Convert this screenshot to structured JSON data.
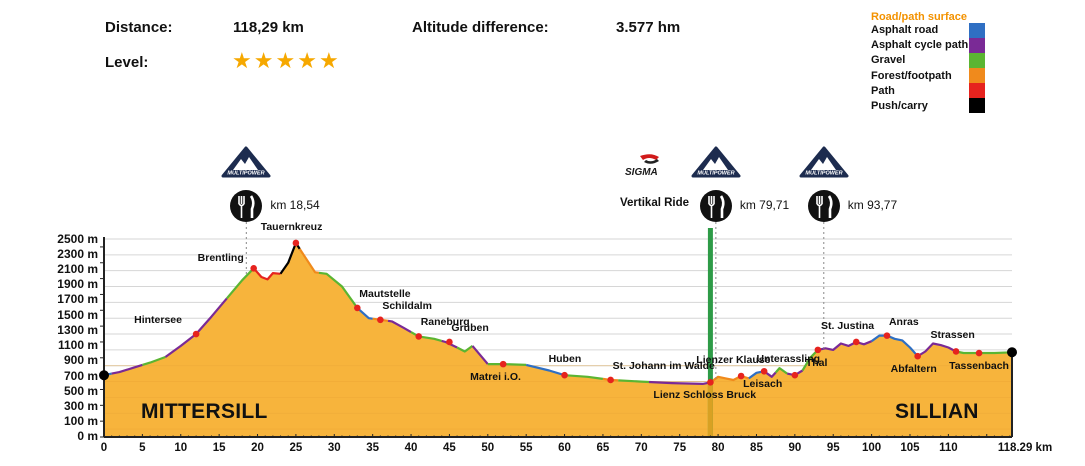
{
  "header": {
    "distance_label": "Distance:",
    "distance_value": "118,29 km",
    "altitude_label": "Altitude difference:",
    "altitude_value": "3.577 hm",
    "level_label": "Level:",
    "level_stars": 5,
    "star_color": "#f6a800"
  },
  "legend": {
    "title": "Road/path surface",
    "title_color": "#f39200",
    "items": [
      {
        "label": "Asphalt road",
        "color": "#2f6fc3"
      },
      {
        "label": "Asphalt cycle path",
        "color": "#7a2a96"
      },
      {
        "label": "Gravel",
        "color": "#5bb532"
      },
      {
        "label": "Forest/footpath",
        "color": "#f08a1c"
      },
      {
        "label": "Path",
        "color": "#e6231e"
      },
      {
        "label": "Push/carry",
        "color": "#000000"
      }
    ]
  },
  "sponsors": {
    "multipower_label": "MULTIPOWER",
    "sigma_label": "SIGMA",
    "vertikal_ride_label": "Vertikal Ride"
  },
  "feed_stations": [
    {
      "km_label": "km 18,54",
      "km": 18.54
    },
    {
      "km_label": "km 79,71",
      "km": 79.71
    },
    {
      "km_label": "km 93,77",
      "km": 93.77
    }
  ],
  "chart_data": {
    "type": "area",
    "title": "Elevation profile",
    "xlabel": "km",
    "ylabel": "m",
    "xlim": [
      0,
      118.29
    ],
    "ylim": [
      0,
      2500
    ],
    "grid": true,
    "fill_color": "#f7b43c",
    "x_ticks": [
      "0",
      "5",
      "10",
      "15",
      "20",
      "25",
      "30",
      "35",
      "40",
      "45",
      "50",
      "55",
      "60",
      "65",
      "70",
      "75",
      "80",
      "85",
      "90",
      "95",
      "100",
      "105",
      "110",
      "118.29 km"
    ],
    "y_ticks": [
      "2500 m",
      "2300 m",
      "2100 m",
      "1900 m",
      "1700 m",
      "1500 m",
      "1300 m",
      "1100 m",
      "900 m",
      "700 m",
      "500 m",
      "300 m",
      "100 m",
      "0 m"
    ],
    "start_label": "MITTERSILL",
    "end_label": "SILLIAN",
    "vertikal_ride_km": 79,
    "profile": [
      [
        0,
        780
      ],
      [
        2,
        820
      ],
      [
        4,
        880
      ],
      [
        6,
        940
      ],
      [
        8,
        1010
      ],
      [
        10,
        1150
      ],
      [
        12,
        1300
      ],
      [
        14,
        1520
      ],
      [
        16,
        1750
      ],
      [
        18,
        1980
      ],
      [
        19.5,
        2130
      ],
      [
        20.5,
        2020
      ],
      [
        21.3,
        1990
      ],
      [
        22,
        2070
      ],
      [
        23,
        2060
      ],
      [
        24,
        2200
      ],
      [
        25,
        2450
      ],
      [
        26,
        2300
      ],
      [
        27.5,
        2080
      ],
      [
        29,
        2060
      ],
      [
        31,
        1900
      ],
      [
        33,
        1630
      ],
      [
        34.5,
        1500
      ],
      [
        36,
        1480
      ],
      [
        37.5,
        1460
      ],
      [
        39,
        1380
      ],
      [
        41,
        1270
      ],
      [
        43,
        1240
      ],
      [
        44.5,
        1200
      ],
      [
        46,
        1130
      ],
      [
        47,
        1080
      ],
      [
        48,
        1150
      ],
      [
        50,
        920
      ],
      [
        52,
        920
      ],
      [
        55,
        910
      ],
      [
        58,
        840
      ],
      [
        60,
        780
      ],
      [
        63,
        760
      ],
      [
        66,
        720
      ],
      [
        70,
        700
      ],
      [
        74,
        680
      ],
      [
        78,
        670
      ],
      [
        79,
        690
      ],
      [
        80,
        760
      ],
      [
        81,
        740
      ],
      [
        82,
        720
      ],
      [
        83,
        770
      ],
      [
        84,
        740
      ],
      [
        85,
        810
      ],
      [
        86,
        830
      ],
      [
        87,
        760
      ],
      [
        88,
        870
      ],
      [
        89,
        800
      ],
      [
        90,
        780
      ],
      [
        91,
        840
      ],
      [
        92,
        1000
      ],
      [
        93,
        1100
      ],
      [
        94,
        1120
      ],
      [
        95,
        1100
      ],
      [
        96,
        1180
      ],
      [
        97,
        1150
      ],
      [
        98,
        1200
      ],
      [
        99,
        1170
      ],
      [
        100,
        1210
      ],
      [
        101,
        1280
      ],
      [
        102,
        1280
      ],
      [
        103,
        1240
      ],
      [
        104,
        1220
      ],
      [
        105,
        1130
      ],
      [
        106,
        1020
      ],
      [
        107,
        1080
      ],
      [
        108,
        1180
      ],
      [
        109,
        1160
      ],
      [
        110,
        1130
      ],
      [
        111,
        1080
      ],
      [
        112,
        1060
      ],
      [
        114,
        1060
      ],
      [
        116,
        1060
      ],
      [
        118.29,
        1070
      ]
    ],
    "surface_segments": [
      {
        "from": 0,
        "to": 1,
        "surface": "Asphalt road"
      },
      {
        "from": 1,
        "to": 5,
        "surface": "Asphalt cycle path"
      },
      {
        "from": 5,
        "to": 8,
        "surface": "Gravel"
      },
      {
        "from": 8,
        "to": 16,
        "surface": "Asphalt cycle path"
      },
      {
        "from": 16,
        "to": 19.5,
        "surface": "Gravel"
      },
      {
        "from": 19.5,
        "to": 23,
        "surface": "Path"
      },
      {
        "from": 23,
        "to": 25.5,
        "surface": "Push/carry"
      },
      {
        "from": 25.5,
        "to": 28,
        "surface": "Forest/footpath"
      },
      {
        "from": 28,
        "to": 33,
        "surface": "Gravel"
      },
      {
        "from": 33,
        "to": 35,
        "surface": "Asphalt road"
      },
      {
        "from": 35,
        "to": 37,
        "surface": "Forest/footpath"
      },
      {
        "from": 37,
        "to": 40,
        "surface": "Asphalt cycle path"
      },
      {
        "from": 40,
        "to": 44,
        "surface": "Gravel"
      },
      {
        "from": 44,
        "to": 46,
        "surface": "Asphalt cycle path"
      },
      {
        "from": 46,
        "to": 48,
        "surface": "Gravel"
      },
      {
        "from": 48,
        "to": 50,
        "surface": "Asphalt cycle path"
      },
      {
        "from": 50,
        "to": 55,
        "surface": "Gravel"
      },
      {
        "from": 55,
        "to": 60,
        "surface": "Asphalt road"
      },
      {
        "from": 60,
        "to": 65,
        "surface": "Gravel"
      },
      {
        "from": 65,
        "to": 67,
        "surface": "Forest/footpath"
      },
      {
        "from": 67,
        "to": 71,
        "surface": "Gravel"
      },
      {
        "from": 71,
        "to": 79,
        "surface": "Asphalt cycle path"
      },
      {
        "from": 79,
        "to": 84,
        "surface": "Forest/footpath"
      },
      {
        "from": 84,
        "to": 86,
        "surface": "Asphalt road"
      },
      {
        "from": 86,
        "to": 87.5,
        "surface": "Asphalt cycle path"
      },
      {
        "from": 87.5,
        "to": 89,
        "surface": "Gravel"
      },
      {
        "from": 89,
        "to": 91,
        "surface": "Asphalt cycle path"
      },
      {
        "from": 91,
        "to": 93,
        "surface": "Gravel"
      },
      {
        "from": 93,
        "to": 100,
        "surface": "Asphalt cycle path"
      },
      {
        "from": 100,
        "to": 106,
        "surface": "Asphalt road"
      },
      {
        "from": 106,
        "to": 111,
        "surface": "Asphalt cycle path"
      },
      {
        "from": 111,
        "to": 118.29,
        "surface": "Gravel"
      }
    ],
    "annotations": [
      {
        "label": "Hintersee",
        "km": 12,
        "alt": 1300,
        "label_pos": "above-left"
      },
      {
        "label": "Brentling",
        "km": 19.5,
        "alt": 2130,
        "label_pos": "left"
      },
      {
        "label": "Tauernkreuz",
        "km": 25,
        "alt": 2450,
        "label_pos": "above"
      },
      {
        "label": "Mautstelle",
        "km": 33,
        "alt": 1630,
        "label_pos": "above-right"
      },
      {
        "label": "Schildalm",
        "km": 36,
        "alt": 1480,
        "label_pos": "above-right"
      },
      {
        "label": "Raneburg",
        "km": 41,
        "alt": 1270,
        "label_pos": "above-right"
      },
      {
        "label": "Gruben",
        "km": 45,
        "alt": 1200,
        "label_pos": "above-right"
      },
      {
        "label": "Matrei i.O.",
        "km": 52,
        "alt": 920,
        "label_pos": "below"
      },
      {
        "label": "Huben",
        "km": 60,
        "alt": 780,
        "label_pos": "above"
      },
      {
        "label": "St. Johann im Walde",
        "km": 66,
        "alt": 720,
        "label_pos": "above-right"
      },
      {
        "label": "Lienz Schloss Bruck",
        "km": 79,
        "alt": 690,
        "label_pos": "below"
      },
      {
        "label": "Lienzer Klause",
        "km": 83,
        "alt": 770,
        "label_pos": "above"
      },
      {
        "label": "Leisach",
        "km": 86,
        "alt": 830,
        "label_pos": "below"
      },
      {
        "label": "Unterassling",
        "km": 90,
        "alt": 780,
        "label_pos": "above"
      },
      {
        "label": "Thal",
        "km": 93,
        "alt": 1100,
        "label_pos": "below"
      },
      {
        "label": "St. Justina",
        "km": 98,
        "alt": 1200,
        "label_pos": "above"
      },
      {
        "label": "Anras",
        "km": 102,
        "alt": 1280,
        "label_pos": "above-right"
      },
      {
        "label": "Abfaltern",
        "km": 106,
        "alt": 1020,
        "label_pos": "below"
      },
      {
        "label": "Strassen",
        "km": 111,
        "alt": 1080,
        "label_pos": "above"
      },
      {
        "label": "Tassenbach",
        "km": 114,
        "alt": 1060,
        "label_pos": "below"
      }
    ]
  }
}
